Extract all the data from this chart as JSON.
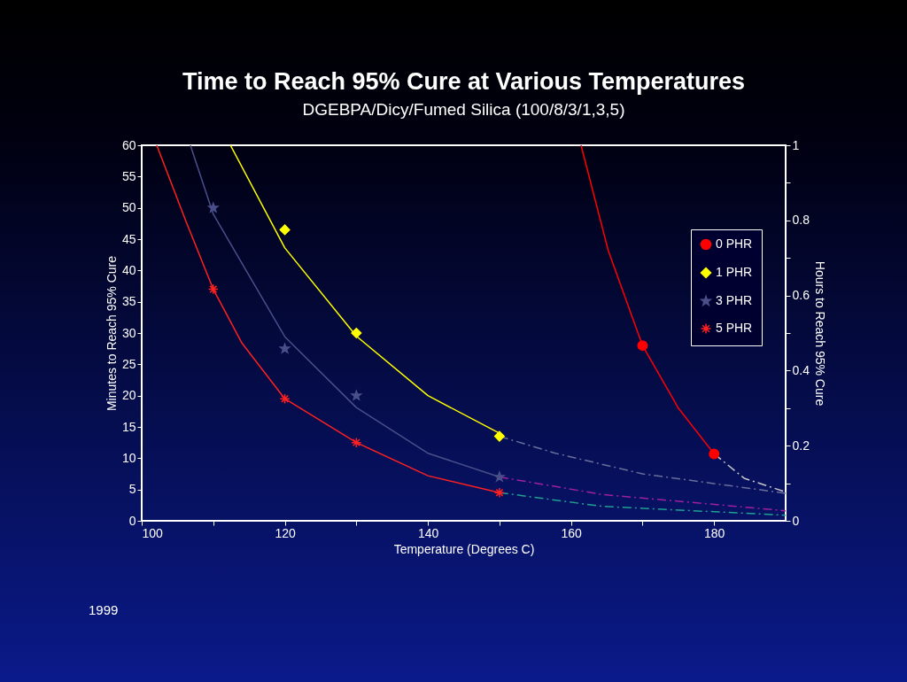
{
  "chart_data": {
    "type": "scatter",
    "title": "Time to Reach 95% Cure at Various Temperatures",
    "subtitle": "DGEBPA/Dicy/Fumed Silica (100/8/3/1,3,5)",
    "xlabel": "Temperature (Degrees C)",
    "ylabel": "Minutes to Reach 95% Cure",
    "y2label": "Hours to Reach 95% Cure",
    "xlim": [
      100,
      190
    ],
    "xticks": [
      100,
      {
        "value": 110,
        "label": null
      },
      120,
      {
        "value": 130,
        "label": null
      },
      140,
      {
        "value": 150,
        "label": null
      },
      160,
      {
        "value": 170,
        "label": null
      },
      180
    ],
    "ylim": [
      0,
      60
    ],
    "yticks": [
      0,
      5,
      10,
      15,
      20,
      25,
      30,
      35,
      40,
      45,
      50,
      55,
      60
    ],
    "y2lim": [
      0,
      1
    ],
    "y2ticks": [
      0,
      {
        "value": 0.1,
        "label": null
      },
      0.2,
      {
        "value": 0.3,
        "label": null
      },
      0.4,
      {
        "value": 0.5,
        "label": null
      },
      0.6,
      {
        "value": 0.7,
        "label": null
      },
      0.8,
      {
        "value": 0.9,
        "label": null
      },
      1
    ],
    "grid": false,
    "legend": "right",
    "annotations": [
      "1999"
    ],
    "series": [
      {
        "type": "line",
        "color": "#ff0000",
        "line_style": "solid",
        "x": [
          161.4,
          165.2,
          170,
          175,
          180
        ],
        "values": [
          60,
          43.2,
          28,
          18,
          10.7
        ]
      },
      {
        "type": "line",
        "color": "#c8c8c8",
        "line_style": "dashed",
        "x": [
          180,
          184.2,
          190
        ],
        "values": [
          10.7,
          6.8,
          4.6
        ]
      },
      {
        "type": "line",
        "color": "#ffff00",
        "line_style": "solid",
        "x": [
          112.4,
          120,
          130,
          140,
          150
        ],
        "values": [
          60,
          43.6,
          29.5,
          20,
          14
        ]
      },
      {
        "type": "line",
        "color": "#6a6f9a",
        "line_style": "dashed",
        "x": [
          150,
          157.8,
          170,
          190
        ],
        "values": [
          13.5,
          10.8,
          7.5,
          4.4
        ]
      },
      {
        "type": "line",
        "color": "#4a4f8a",
        "line_style": "solid",
        "x": [
          106.8,
          110,
          120,
          130,
          140,
          150
        ],
        "values": [
          60,
          49,
          29.4,
          18.1,
          10.8,
          7
        ]
      },
      {
        "type": "line",
        "color": "#a020a0",
        "line_style": "dashed",
        "x": [
          150,
          164.4,
          190
        ],
        "values": [
          7,
          4.2,
          1.6
        ]
      },
      {
        "type": "line",
        "color": "#ff2020",
        "line_style": "solid",
        "x": [
          102.1,
          106.2,
          110,
          114,
          120,
          130,
          140,
          150
        ],
        "values": [
          60,
          47.8,
          37,
          28.4,
          19.5,
          12.5,
          7.2,
          4.5
        ]
      },
      {
        "type": "line",
        "color": "#20a090",
        "line_style": "dashed",
        "x": [
          150,
          164.4,
          190
        ],
        "values": [
          4.5,
          2.3,
          0.9
        ]
      },
      {
        "name": "0 PHR",
        "marker": "circle",
        "color": "#ff0000",
        "x": [
          170,
          180
        ],
        "values": [
          28,
          10.7
        ]
      },
      {
        "name": "1 PHR",
        "marker": "diamond",
        "color": "#ffff00",
        "x": [
          120,
          130,
          150
        ],
        "values": [
          46.5,
          30,
          13.5
        ]
      },
      {
        "name": "3 PHR",
        "marker": "star",
        "color": "#4a4f8a",
        "x": [
          110,
          120,
          130,
          150
        ],
        "values": [
          50,
          27.5,
          20,
          7
        ]
      },
      {
        "name": "5 PHR",
        "marker": "cross",
        "color": "#ff2020",
        "x": [
          110,
          120,
          130,
          150
        ],
        "values": [
          37,
          19.5,
          12.5,
          4.5
        ]
      }
    ]
  }
}
